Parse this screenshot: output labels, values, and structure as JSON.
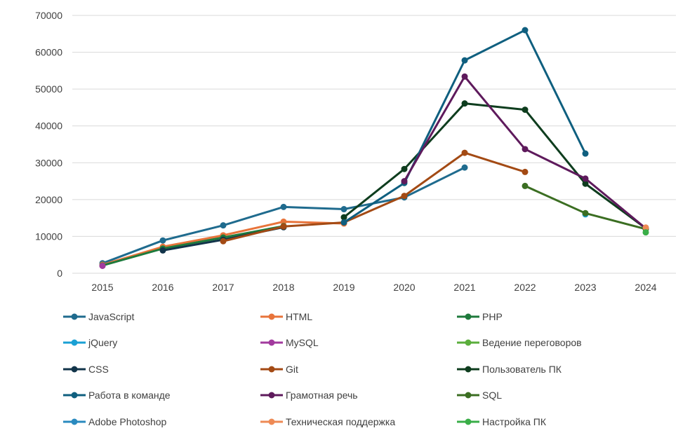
{
  "chart_data": {
    "type": "line",
    "x": [
      "2015",
      "2016",
      "2017",
      "2018",
      "2019",
      "2020",
      "2021",
      "2022",
      "2023",
      "2024"
    ],
    "ylim": [
      0,
      70000
    ],
    "yticks": [
      0,
      10000,
      20000,
      30000,
      40000,
      50000,
      60000,
      70000
    ],
    "grid": "horizontal",
    "legend_position": "bottom",
    "series": [
      {
        "name": "JavaScript",
        "color": "#1F6B8E",
        "values": [
          2700,
          8900,
          13000,
          18000,
          17400,
          20600,
          28700,
          null,
          null,
          null
        ]
      },
      {
        "name": "HTML",
        "color": "#E8743B",
        "values": [
          2300,
          7200,
          10300,
          14000,
          13500,
          null,
          null,
          null,
          null,
          null
        ]
      },
      {
        "name": "PHP",
        "color": "#1E7A3C",
        "values": [
          2100,
          6700,
          9700,
          12800,
          null,
          null,
          null,
          null,
          null,
          null
        ]
      },
      {
        "name": "jQuery",
        "color": "#1AA0D4",
        "values": [
          null,
          null,
          null,
          null,
          null,
          null,
          null,
          null,
          16000,
          null
        ]
      },
      {
        "name": "MySQL",
        "color": "#A23A9E",
        "values": [
          2000,
          null,
          null,
          null,
          null,
          null,
          null,
          null,
          null,
          null
        ]
      },
      {
        "name": "Ведение переговоров",
        "color": "#5BAE3C",
        "values": [
          null,
          null,
          null,
          null,
          null,
          null,
          null,
          null,
          null,
          null
        ]
      },
      {
        "name": "CSS",
        "color": "#12344A",
        "values": [
          null,
          6200,
          9100,
          12500,
          null,
          null,
          null,
          null,
          null,
          null
        ]
      },
      {
        "name": "Git",
        "color": "#A34A14",
        "values": [
          null,
          null,
          8700,
          12700,
          13800,
          21000,
          32700,
          27500,
          null,
          null
        ]
      },
      {
        "name": "Пользователь ПК",
        "color": "#0E3D1E",
        "values": [
          null,
          null,
          null,
          null,
          15200,
          28300,
          46100,
          44400,
          24300,
          12200
        ]
      },
      {
        "name": "Работа в команде",
        "color": "#0F5F7F",
        "values": [
          null,
          null,
          null,
          null,
          13800,
          24500,
          57800,
          66000,
          32500,
          null
        ]
      },
      {
        "name": "Грамотная речь",
        "color": "#5E1A5C",
        "values": [
          null,
          null,
          null,
          null,
          null,
          25000,
          53400,
          33700,
          25700,
          12200
        ]
      },
      {
        "name": "SQL",
        "color": "#3B6E22",
        "values": [
          null,
          null,
          null,
          null,
          null,
          null,
          null,
          23700,
          16300,
          12000
        ]
      },
      {
        "name": "Adobe Photoshop",
        "color": "#2A8ABF",
        "values": [
          null,
          null,
          null,
          null,
          null,
          null,
          null,
          null,
          null,
          null
        ]
      },
      {
        "name": "Техническая поддержка",
        "color": "#EE8A55",
        "values": [
          null,
          null,
          null,
          null,
          null,
          null,
          null,
          null,
          null,
          12400
        ]
      },
      {
        "name": "Настройка ПК",
        "color": "#3AAE48",
        "values": [
          null,
          null,
          null,
          null,
          null,
          null,
          null,
          null,
          null,
          11100
        ]
      }
    ]
  }
}
